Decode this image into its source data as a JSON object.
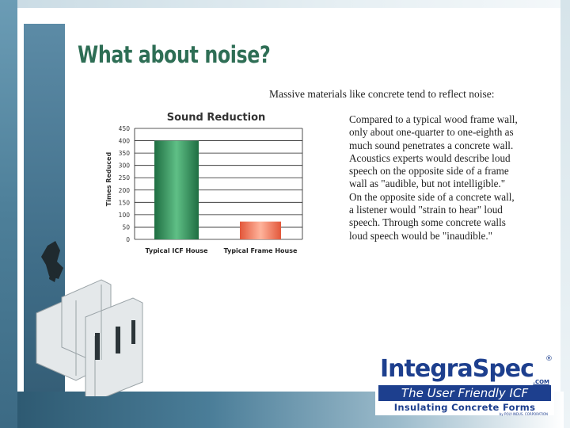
{
  "title": "What about noise?",
  "intro": "Massive materials like concrete tend to reflect noise:",
  "body_lines": [
    "Compared to a typical wood frame wall,",
    "only about one-quarter to one-eighth as",
    "much sound penetrates a concrete wall.",
    "Acoustics experts would describe loud",
    "speech on the opposite side of a frame",
    "wall as \"audible, but not intelligible.\"",
    "On the opposite side of a concrete wall,",
    "a listener would \"strain to hear\" loud",
    "speech. Through some concrete walls",
    "loud speech would be \"inaudible.\""
  ],
  "chart_data": {
    "type": "bar",
    "title": "Sound Reduction",
    "ylabel": "Times Reduced",
    "xlabel": "",
    "categories": [
      "Typical ICF House",
      "Typical Frame House"
    ],
    "values": [
      400,
      72
    ],
    "ylim": [
      0,
      450
    ],
    "yticks": [
      0,
      50,
      100,
      150,
      200,
      250,
      300,
      350,
      400,
      450
    ],
    "grid": true,
    "bar_colors": [
      "#2f8f5c",
      "#f08062"
    ]
  },
  "logo": {
    "name": "IntegraSpec",
    "registered": "®",
    "domain": ".COM",
    "tagline": "The User Friendly ICF",
    "subtitle": "Insulating Concrete Forms",
    "byline": "by POLY-INDUS. CORPORATION"
  },
  "colors": {
    "title": "#2e6e55",
    "accent_blue": "#1d3f8e",
    "panel": "#4d7f99"
  }
}
